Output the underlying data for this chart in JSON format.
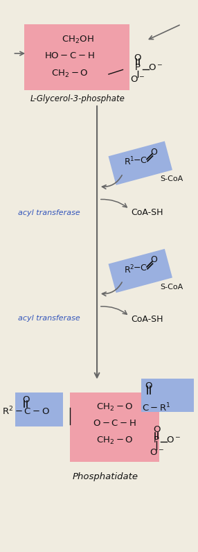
{
  "bg_color": "#f0ece0",
  "pink_color": "#f0a0aa",
  "blue_color": "#9ab0e0",
  "arrow_color": "#666666",
  "text_color": "#111111",
  "blue_text_color": "#3355bb",
  "title": "L-Glycerol-3-phosphate",
  "bottom_title": "Phosphatidate",
  "enzyme1": "acyl transferase",
  "enzyme2": "acyl transferase",
  "coa1": "CoA-SH",
  "coa2": "CoA-SH",
  "fig_w": 2.86,
  "fig_h": 7.96,
  "dpi": 100
}
